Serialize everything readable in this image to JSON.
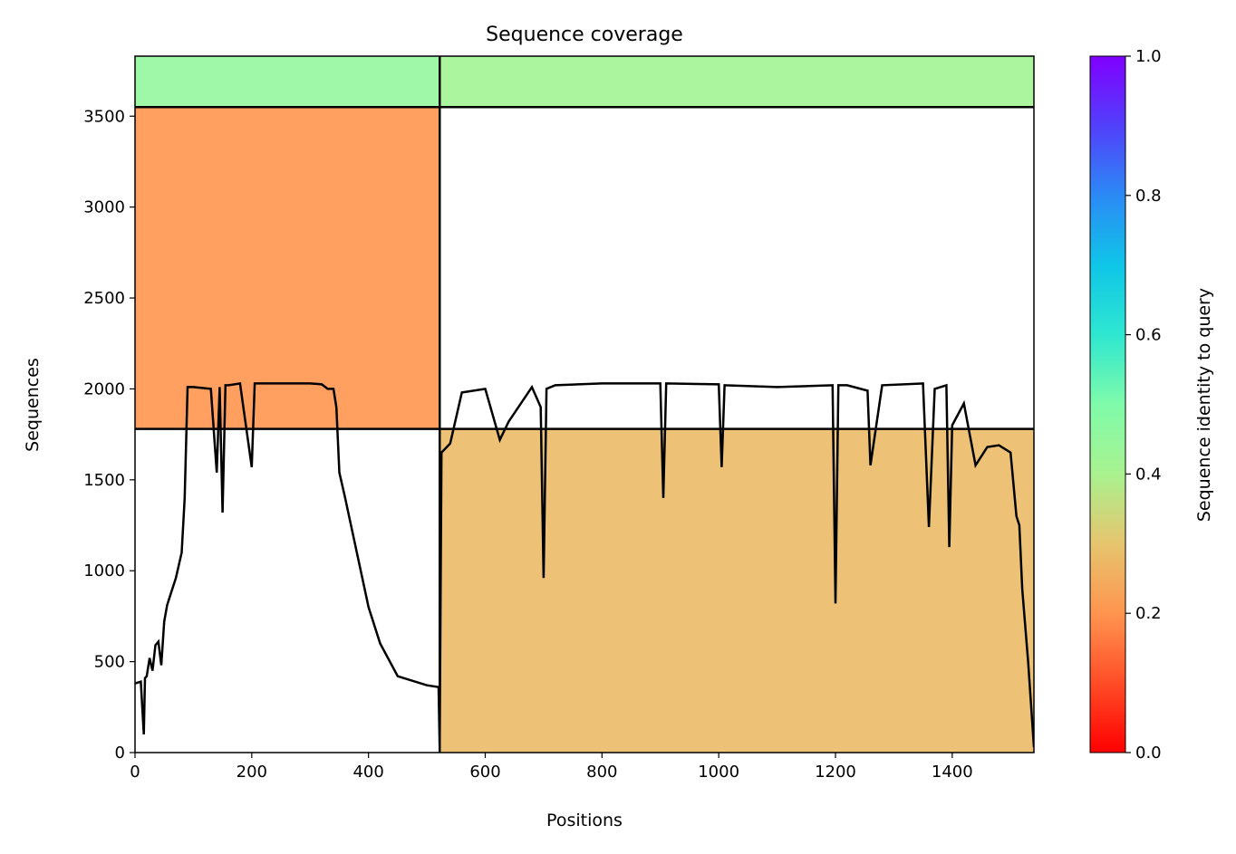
{
  "chart_data": {
    "type": "heatmap",
    "title": "Sequence coverage",
    "xlabel": "Positions",
    "ylabel": "Sequences",
    "xlim": [
      0,
      1540
    ],
    "ylim": [
      0,
      3830
    ],
    "xticks": [
      0,
      200,
      400,
      600,
      800,
      1000,
      1200,
      1400
    ],
    "yticks": [
      0,
      500,
      1000,
      1500,
      2000,
      2500,
      3000,
      3500
    ],
    "colorbar": {
      "label": "Sequence identity to query",
      "range": [
        0.0,
        1.0
      ],
      "ticks": [
        "0.0",
        "0.2",
        "0.4",
        "0.6",
        "0.8",
        "1.0"
      ],
      "colormap": "rainbow_r"
    },
    "divider_lines": {
      "vertical_x": 522,
      "horizontal_y": [
        1780,
        3550
      ]
    },
    "blocks": [
      {
        "x": [
          0,
          522
        ],
        "y": [
          3550,
          3830
        ],
        "identity": 0.45
      },
      {
        "x": [
          522,
          1540
        ],
        "y": [
          3550,
          3830
        ],
        "identity": 0.42
      },
      {
        "x": [
          0,
          522
        ],
        "y": [
          1780,
          3550
        ],
        "identity": 0.2
      },
      {
        "x": [
          522,
          1540
        ],
        "y": [
          0,
          1780
        ],
        "identity": 0.28
      }
    ],
    "coverage_line": {
      "x": [
        0,
        10,
        15,
        17,
        20,
        25,
        30,
        35,
        40,
        45,
        50,
        55,
        60,
        70,
        80,
        85,
        90,
        100,
        130,
        140,
        145,
        150,
        155,
        160,
        180,
        200,
        205,
        210,
        250,
        300,
        320,
        330,
        340,
        345,
        350,
        360,
        380,
        400,
        420,
        450,
        500,
        520,
        522,
        525,
        540,
        560,
        600,
        625,
        640,
        680,
        695,
        700,
        705,
        720,
        800,
        900,
        905,
        910,
        1000,
        1005,
        1010,
        1100,
        1195,
        1200,
        1205,
        1220,
        1255,
        1260,
        1280,
        1350,
        1360,
        1370,
        1390,
        1395,
        1400,
        1420,
        1440,
        1460,
        1480,
        1500,
        1510,
        1515,
        1520,
        1530,
        1540
      ],
      "y": [
        380,
        390,
        100,
        410,
        420,
        520,
        450,
        590,
        610,
        480,
        720,
        810,
        860,
        960,
        1100,
        1400,
        2010,
        2010,
        2000,
        1540,
        2010,
        1320,
        2020,
        2020,
        2030,
        1570,
        2030,
        2030,
        2030,
        2030,
        2025,
        2000,
        2000,
        1900,
        1540,
        1400,
        1100,
        800,
        600,
        420,
        370,
        360,
        30,
        1650,
        1700,
        1980,
        2000,
        1720,
        1820,
        2010,
        1900,
        960,
        2000,
        2020,
        2030,
        2030,
        1400,
        2030,
        2025,
        1570,
        2020,
        2010,
        2020,
        820,
        2020,
        2020,
        1990,
        1580,
        2020,
        2030,
        1240,
        2000,
        2020,
        1130,
        1800,
        1920,
        1580,
        1680,
        1690,
        1650,
        1300,
        1250,
        900,
        500,
        30
      ]
    }
  }
}
